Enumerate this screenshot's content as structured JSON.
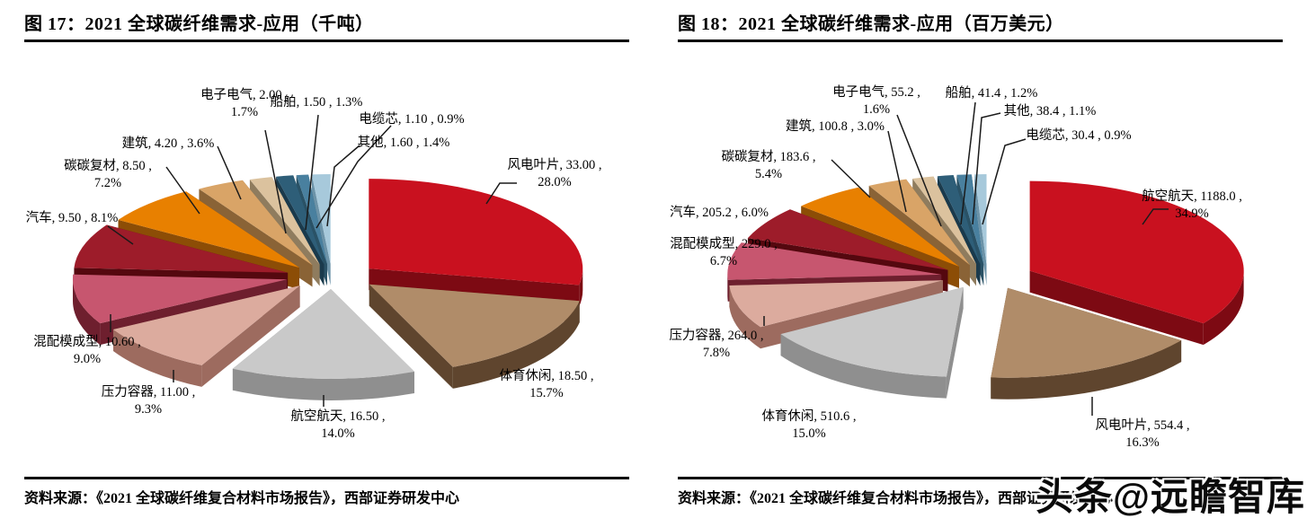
{
  "watermark": "头条@远瞻智库",
  "chart_data": [
    {
      "type": "pie",
      "style": "3d-exploded",
      "title": "图 17：2021 全球碳纤维需求-应用（千吨）",
      "unit": "千吨",
      "source": "资料来源：《2021 全球碳纤维复合材料市场报告》，西部证券研发中心",
      "label_format": "{name}, {value} , {pct}%",
      "start_angle_deg": 0,
      "direction": "clockwise",
      "slices": [
        {
          "name": "风电叶片",
          "value": "33.00",
          "pct": "28.0",
          "color": "#C9111F",
          "side_color": "#7D0A13"
        },
        {
          "name": "体育休闲",
          "value": "18.50",
          "pct": "15.7",
          "color": "#B08C69",
          "side_color": "#5F452E"
        },
        {
          "name": "航空航天",
          "value": "16.50",
          "pct": "14.0",
          "color": "#C9C9C9",
          "side_color": "#8F8F8F"
        },
        {
          "name": "压力容器",
          "value": "11.00",
          "pct": "9.3",
          "color": "#DCAB9E",
          "side_color": "#9D6B5F"
        },
        {
          "name": "混配模成型",
          "value": "10.60",
          "pct": "9.0",
          "color": "#C7566F",
          "side_color": "#6E1F2E"
        },
        {
          "name": "汽车",
          "value": "9.50",
          "pct": "8.1",
          "color": "#9D1C2A",
          "side_color": "#55080F"
        },
        {
          "name": "碳碳复材",
          "value": "8.50",
          "pct": "7.2",
          "color": "#E88000",
          "side_color": "#8C4D06"
        },
        {
          "name": "建筑",
          "value": "4.20",
          "pct": "3.6",
          "color": "#D9A467",
          "side_color": "#8A6336"
        },
        {
          "name": "电子电气",
          "value": "2.00",
          "pct": "1.7",
          "color": "#DBC29E",
          "side_color": "#8F7C5E"
        },
        {
          "name": "船舶",
          "value": "1.50",
          "pct": "1.3",
          "color": "#2E5E78",
          "side_color": "#1A3A4C"
        },
        {
          "name": "电缆芯",
          "value": "1.10",
          "pct": "0.9",
          "color": "#49809F",
          "side_color": "#2A5266"
        },
        {
          "name": "其他",
          "value": "1.60",
          "pct": "1.4",
          "color": "#A7C9DB",
          "side_color": "#6C93A8"
        }
      ]
    },
    {
      "type": "pie",
      "style": "3d-exploded",
      "title": "图 18：2021 全球碳纤维需求-应用（百万美元）",
      "unit": "百万美元",
      "source": "资料来源：《2021 全球碳纤维复合材料市场报告》，西部证券研发中心",
      "label_format": "{name}, {value} , {pct}%",
      "start_angle_deg": 0,
      "direction": "clockwise",
      "slices": [
        {
          "name": "航空航天",
          "value": "1188.0",
          "pct": "34.9",
          "color": "#C9111F",
          "side_color": "#7D0A13"
        },
        {
          "name": "风电叶片",
          "value": "554.4",
          "pct": "16.3",
          "color": "#B08C69",
          "side_color": "#5F452E"
        },
        {
          "name": "体育休闲",
          "value": "510.6",
          "pct": "15.0",
          "color": "#C9C9C9",
          "side_color": "#8F8F8F"
        },
        {
          "name": "压力容器",
          "value": "264.0",
          "pct": "7.8",
          "color": "#DCAB9E",
          "side_color": "#9D6B5F"
        },
        {
          "name": "混配模成型",
          "value": "229.0",
          "pct": "6.7",
          "color": "#C7566F",
          "side_color": "#6E1F2E"
        },
        {
          "name": "汽车",
          "value": "205.2",
          "pct": "6.0",
          "color": "#9D1C2A",
          "side_color": "#55080F"
        },
        {
          "name": "碳碳复材",
          "value": "183.6",
          "pct": "5.4",
          "color": "#E88000",
          "side_color": "#8C4D06"
        },
        {
          "name": "建筑",
          "value": "100.8",
          "pct": "3.0",
          "color": "#D9A467",
          "side_color": "#8A6336"
        },
        {
          "name": "电子电气",
          "value": "55.2",
          "pct": "1.6",
          "color": "#DBC29E",
          "side_color": "#8F7C5E"
        },
        {
          "name": "船舶",
          "value": "41.4",
          "pct": "1.2",
          "color": "#2E5E78",
          "side_color": "#1A3A4C"
        },
        {
          "name": "其他",
          "value": "38.4",
          "pct": "1.1",
          "color": "#49809F",
          "side_color": "#2A5266"
        },
        {
          "name": "电缆芯",
          "value": "30.4",
          "pct": "0.9",
          "color": "#A7C9DB",
          "side_color": "#6C93A8"
        }
      ]
    }
  ]
}
